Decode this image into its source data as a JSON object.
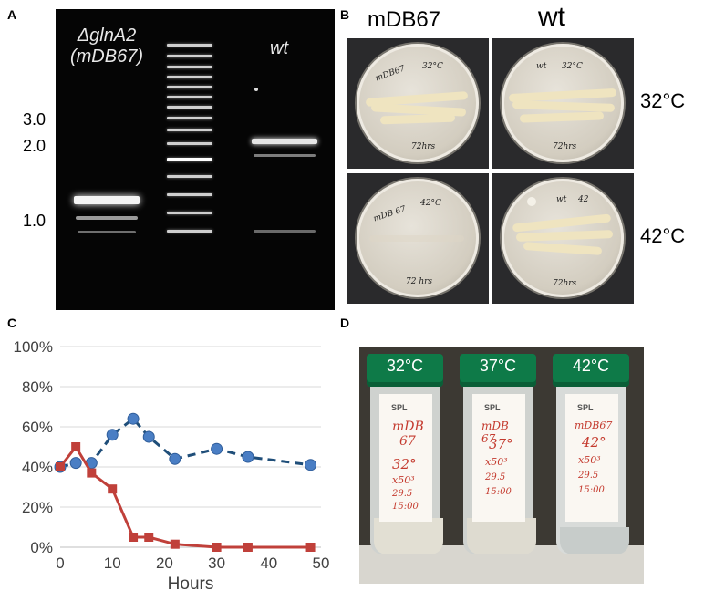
{
  "panels": {
    "a": "A",
    "b": "B",
    "c": "C",
    "d": "D"
  },
  "gel": {
    "lane1_label_line1": "ΔglnA2",
    "lane1_label_line2": "(mDB67)",
    "lane2_label": "wt",
    "size_markers": [
      "3.0",
      "2.0",
      "1.0"
    ]
  },
  "plates": {
    "col_mutant": "mDB67",
    "col_wt": "wt",
    "row_32": "32°C",
    "row_42": "42°C",
    "labels": {
      "mut32_a": "mDB67",
      "mut32_b": "32°C",
      "mut32_c": "72hrs",
      "wt32_a": "wt",
      "wt32_b": "32°C",
      "wt32_c": "72hrs",
      "mut42_a": "mDB 67",
      "mut42_b": "42°C",
      "mut42_c": "72 hrs",
      "wt42_a": "wt",
      "wt42_b": "42",
      "wt42_c": "72hrs"
    }
  },
  "chart_data": {
    "type": "line",
    "xlabel": "Hours",
    "xlim": [
      0,
      50
    ],
    "ylim": [
      0,
      100
    ],
    "x_ticks": [
      "0",
      "10",
      "20",
      "30",
      "40",
      "50"
    ],
    "y_ticks": [
      "0%",
      "20%",
      "40%",
      "60%",
      "80%",
      "100%"
    ],
    "series": [
      {
        "color": "#4a7ec4",
        "line_color": "#1f4e79",
        "style": "dashed",
        "marker": "circle",
        "x": [
          0,
          3,
          6,
          10,
          14,
          17,
          22,
          30,
          36,
          48
        ],
        "y": [
          40,
          42,
          42,
          56,
          64,
          55,
          44,
          49,
          45,
          41
        ]
      },
      {
        "color": "#c0403a",
        "line_color": "#c0403a",
        "style": "solid",
        "marker": "square",
        "x": [
          0,
          3,
          6,
          10,
          14,
          17,
          22,
          30,
          36,
          48
        ],
        "y": [
          40,
          50,
          37,
          29,
          5,
          5,
          1.5,
          0,
          0,
          0
        ]
      }
    ]
  },
  "tubes": [
    {
      "cap": "32°C",
      "brand": "SPL",
      "line1": "mDB",
      "line2": "67",
      "line3": "32°",
      "line4": "x50³",
      "line5": "29.5",
      "line6": "15:00"
    },
    {
      "cap": "37°C",
      "brand": "SPL",
      "line1": "mDB 67",
      "line2": "37°",
      "line3": "x50³",
      "line4": "29.5",
      "line5": "15:00",
      "line6": ""
    },
    {
      "cap": "42°C",
      "brand": "SPL",
      "line1": "mDB67",
      "line2": "42°",
      "line3": "x50³",
      "line4": "29.5",
      "line5": "15:00",
      "line6": ""
    }
  ]
}
